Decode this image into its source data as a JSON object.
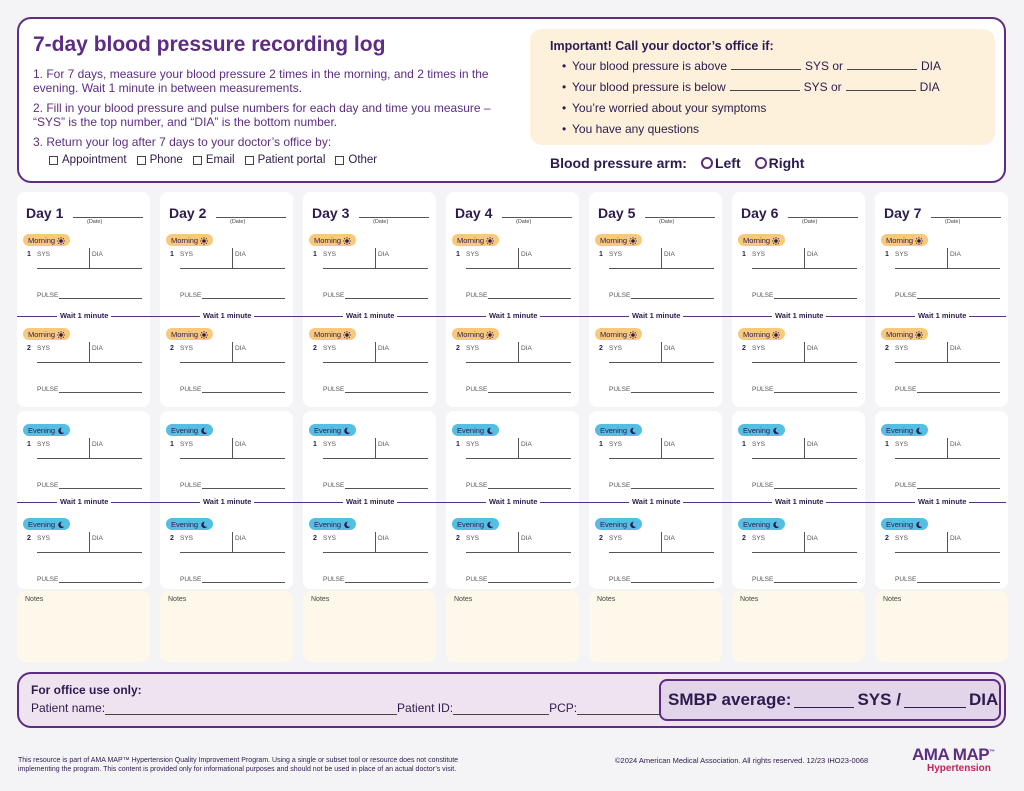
{
  "header": {
    "title": "7-day blood pressure recording log",
    "instructions": [
      "1. For 7 days, measure your blood pressure 2 times in the morning, and 2 times in the evening. Wait 1 minute in between measurements.",
      "2. Fill in your blood pressure and pulse numbers for each day and time you measure – “SYS” is the top number, and “DIA” is the bottom number.",
      "3. Return your log after 7 days to your doctor’s office by:"
    ],
    "return_options": [
      "Appointment",
      "Phone",
      "Email",
      "Patient portal",
      "Other"
    ]
  },
  "important": {
    "heading": "Important! Call your doctor’s office if:",
    "above_prefix": "Your blood pressure is above",
    "above_sys": "SYS or",
    "above_dia": "DIA",
    "below_prefix": "Your blood pressure is below",
    "below_sys": "SYS or",
    "below_dia": "DIA",
    "worried": "You’re worried about your symptoms",
    "questions": "You have any questions"
  },
  "arm": {
    "label": "Blood pressure arm:",
    "left": "Left",
    "right": "Right"
  },
  "days": [
    "Day 1",
    "Day 2",
    "Day 3",
    "Day 4",
    "Day 5",
    "Day 6",
    "Day 7"
  ],
  "log": {
    "date_label": "(Date)",
    "morning": "Morning",
    "evening": "Evening",
    "sys": "SYS",
    "dia": "DIA",
    "pulse": "PULSE",
    "wait": "Wait 1 minute",
    "notes": "Notes",
    "first": "1",
    "second": "2"
  },
  "office": {
    "heading": "For office use only:",
    "patient_name": "Patient name:",
    "patient_id": "Patient ID:",
    "pcp": "PCP:",
    "smbp_label": "SMBP average:",
    "smbp_sys": "SYS /",
    "smbp_dia": "DIA"
  },
  "footer": {
    "disclaimer": "This resource is part of AMA MAP™ Hypertension Quality Improvement Program. Using a single or subset tool or resource does not constitute implementing the program. This content is provided only for informational purposes and should not be used in place of an actual doctor’s visit.",
    "copyright": "©2024  American Medical Association. All rights reserved. 12/23 IHO23-0068",
    "logo_brand": "AMA MAP",
    "logo_tm": "™",
    "logo_sub": "Hypertension"
  },
  "colors": {
    "primary": "#5c2d82",
    "morning": "#f8c97d",
    "evening": "#55bfe3",
    "important_bg": "#fdf1dc",
    "office_bg": "#f0e3f0"
  }
}
